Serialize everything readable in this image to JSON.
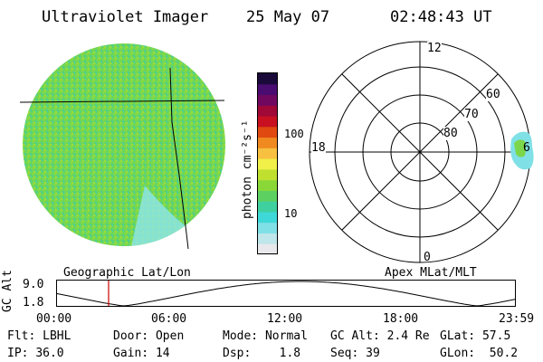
{
  "header": {
    "instrument": "Ultraviolet Imager",
    "date": "25 May 07",
    "time": "02:48:43 UT"
  },
  "colorbar": {
    "unit_label": "photon cm⁻²s⁻¹",
    "ticks": [
      {
        "label": "100",
        "value": 100
      },
      {
        "label": "10",
        "value": 10
      }
    ],
    "colors": [
      "#e8e8ec",
      "#bfe6ea",
      "#7fe0e6",
      "#3fd8d8",
      "#3fd0a0",
      "#5cd060",
      "#8ad838",
      "#c0e030",
      "#f0f048",
      "#f8c040",
      "#f08a20",
      "#e04a10",
      "#c81020",
      "#a00838",
      "#700860",
      "#4a0c70",
      "#1a0a3a"
    ]
  },
  "panels": {
    "left_caption": "Geographic Lat/Lon",
    "right_caption": "Apex MLat/MLT"
  },
  "polar": {
    "mlt_labels": {
      "top": "12",
      "left": "18",
      "bottom": "0",
      "right": "6"
    },
    "lat_labels": [
      "60",
      "70",
      "80"
    ]
  },
  "timeline": {
    "ylabel": "GC Alt",
    "y_top": "9.0",
    "y_bottom": "1.8",
    "x_labels": [
      "00:00",
      "06:00",
      "12:00",
      "18:00",
      "23:59"
    ]
  },
  "info": {
    "row1": [
      {
        "key": "Flt:",
        "value": "LBHL"
      },
      {
        "key": "Door:",
        "value": "Open"
      },
      {
        "key": "Mode:",
        "value": "Normal"
      },
      {
        "key": "GC Alt:",
        "value": "2.4 Re"
      },
      {
        "key": "GLat:",
        "value": "57.5"
      }
    ],
    "row2": [
      {
        "key": "IP:",
        "value": "36.0"
      },
      {
        "key": "Gain:",
        "value": "14"
      },
      {
        "key": "Dsp:",
        "value": "1.8"
      },
      {
        "key": "Seq:",
        "value": "39"
      },
      {
        "key": "GLon:",
        "value": "50.2"
      }
    ]
  }
}
